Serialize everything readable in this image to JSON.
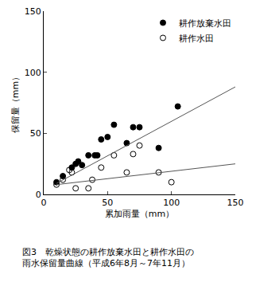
{
  "chart_data": {
    "type": "scatter",
    "title": "図3　乾燥状態の耕作放棄水田と耕作水田の\n雨水保留量曲線（平成6年8月～7年11月）",
    "x_label": "累加雨量（mm）",
    "y_label": "保留量（mm）",
    "xlim": [
      0,
      150
    ],
    "xticks": [
      0,
      50,
      100,
      150
    ],
    "ylim": [
      0,
      150
    ],
    "yticks": [
      0,
      50,
      100,
      150
    ],
    "grid": false,
    "legend": "upper right",
    "series": [
      {
        "name": "耕作放棄水田",
        "color": "#000000",
        "marker": "filled_circle",
        "type": "scatter",
        "x": [
          10,
          15,
          22,
          25,
          27,
          30,
          35,
          40,
          42,
          45,
          50,
          55,
          65,
          70,
          75,
          90,
          105
        ],
        "values": [
          10,
          15,
          22,
          25,
          27,
          24,
          32,
          32,
          32,
          45,
          47,
          57,
          42,
          55,
          55,
          38,
          72
        ]
      },
      {
        "name": "耕作水田",
        "color": "#000000",
        "marker": "open_circle",
        "type": "scatter",
        "x": [
          10,
          15,
          20,
          22,
          25,
          35,
          38,
          45,
          55,
          65,
          70,
          75,
          90,
          100
        ],
        "values": [
          8,
          12,
          20,
          18,
          5,
          5,
          12,
          22,
          32,
          18,
          33,
          40,
          18,
          10
        ]
      },
      {
        "color": "#555555",
        "type": "line",
        "line_style": "solid",
        "x": [
          10,
          150
        ],
        "values": [
          9,
          88
        ]
      },
      {
        "color": "#555555",
        "type": "line",
        "line_style": "solid",
        "x": [
          10,
          150
        ],
        "values": [
          8,
          25
        ]
      }
    ]
  }
}
